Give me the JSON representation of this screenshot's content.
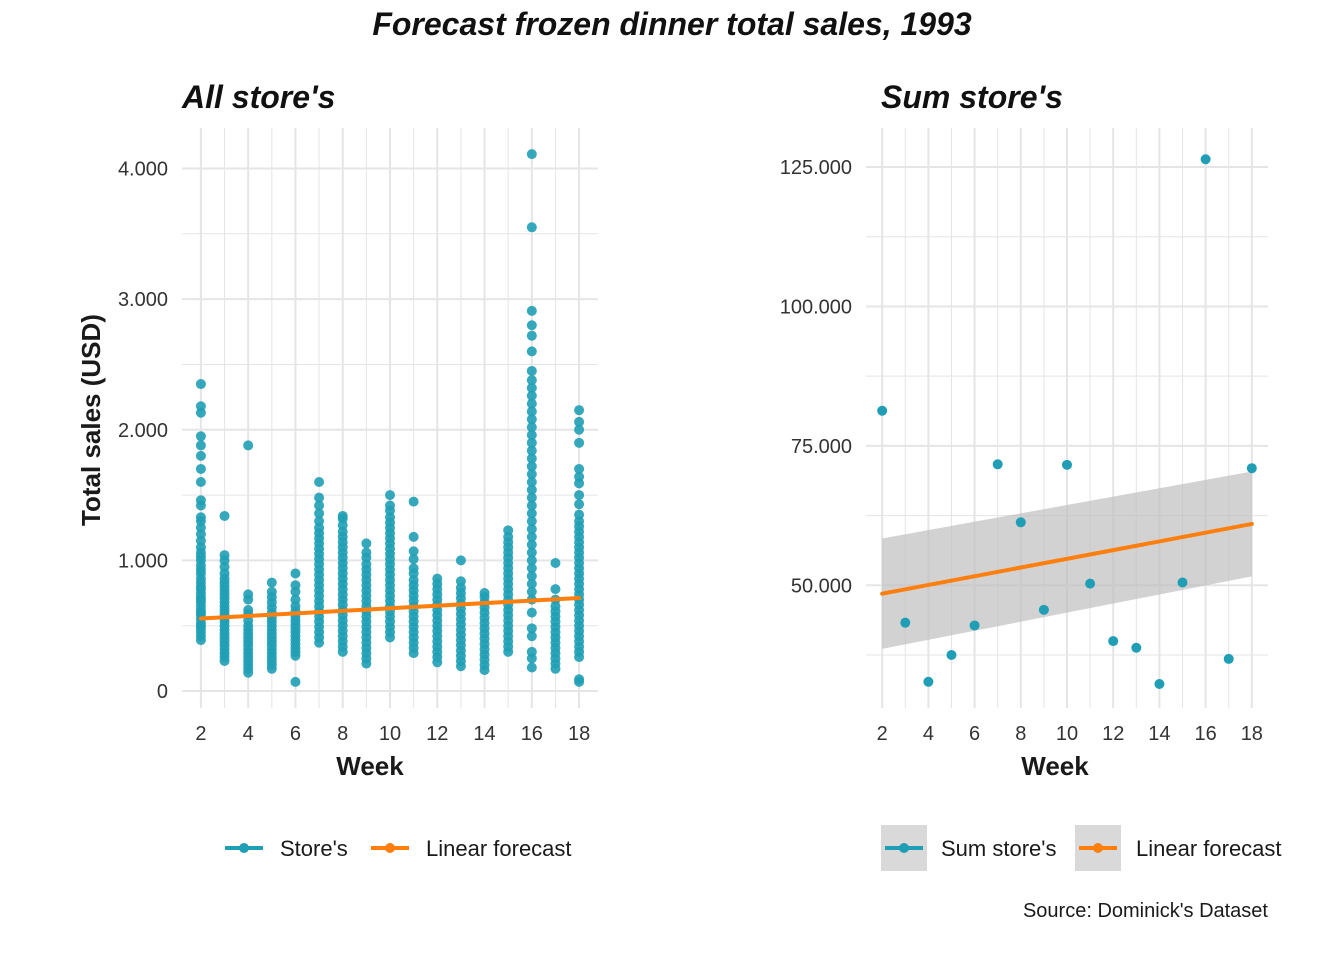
{
  "title": "Forecast frozen dinner total sales, 1993",
  "caption": "Source: Dominick's Dataset",
  "colors": {
    "points": "#1f9eb5",
    "forecast": "#ff7f0e",
    "ribbon": "#bfbfbf",
    "grid": "#e5e5e5",
    "legend_key_bg": "#d9d9d9"
  },
  "chart_data": [
    {
      "type": "scatter",
      "title": "All store's",
      "xlabel": "Week",
      "ylabel": "Total sales (USD)",
      "xlim": [
        1.2,
        18.8
      ],
      "ylim": [
        -130,
        4310
      ],
      "x_ticks": [
        2,
        4,
        6,
        8,
        10,
        12,
        14,
        16,
        18
      ],
      "y_ticks": [
        0,
        1000,
        2000,
        3000,
        4000
      ],
      "y_tick_labels": [
        "0",
        "1.000",
        "2.000",
        "3.000",
        "4.000"
      ],
      "grid": true,
      "legend_position": "bottom",
      "series": [
        {
          "name": "Store's",
          "kind": "points",
          "points_by_week": [
            {
              "x": 2,
              "y": [
                390,
                420,
                450,
                480,
                500,
                520,
                550,
                580,
                600,
                620,
                650,
                680,
                700,
                720,
                750,
                780,
                800,
                830,
                860,
                900,
                930,
                960,
                1000,
                1030,
                1060,
                1100,
                1150,
                1200,
                1250,
                1300,
                1330,
                1420,
                1460,
                1600,
                1700,
                1800,
                1880,
                1950,
                2130,
                2180,
                2350
              ]
            },
            {
              "x": 3,
              "y": [
                230,
                260,
                290,
                320,
                350,
                380,
                410,
                440,
                470,
                500,
                530,
                560,
                590,
                620,
                650,
                680,
                710,
                740,
                770,
                800,
                830,
                860,
                900,
                950,
                1000,
                1040,
                1340
              ]
            },
            {
              "x": 4,
              "y": [
                140,
                170,
                200,
                230,
                260,
                290,
                320,
                350,
                380,
                410,
                440,
                470,
                500,
                540,
                590,
                620,
                700,
                740,
                1880
              ]
            },
            {
              "x": 5,
              "y": [
                170,
                200,
                230,
                260,
                290,
                320,
                350,
                380,
                410,
                440,
                470,
                500,
                530,
                560,
                600,
                640,
                680,
                720,
                760,
                830
              ]
            },
            {
              "x": 6,
              "y": [
                70,
                270,
                300,
                330,
                360,
                390,
                420,
                450,
                480,
                510,
                540,
                570,
                610,
                650,
                700,
                760,
                810,
                900
              ]
            },
            {
              "x": 7,
              "y": [
                370,
                410,
                450,
                490,
                530,
                570,
                610,
                650,
                690,
                730,
                770,
                810,
                850,
                890,
                930,
                970,
                1010,
                1050,
                1090,
                1130,
                1170,
                1210,
                1250,
                1300,
                1360,
                1420,
                1480,
                1600
              ]
            },
            {
              "x": 8,
              "y": [
                300,
                340,
                380,
                420,
                460,
                500,
                540,
                580,
                620,
                660,
                700,
                740,
                780,
                820,
                860,
                900,
                940,
                980,
                1020,
                1060,
                1100,
                1140,
                1180,
                1220,
                1270,
                1320,
                1340
              ]
            },
            {
              "x": 9,
              "y": [
                210,
                250,
                290,
                330,
                370,
                410,
                450,
                490,
                530,
                570,
                610,
                650,
                690,
                730,
                770,
                810,
                850,
                890,
                930,
                970,
                1020,
                1060,
                1130
              ]
            },
            {
              "x": 10,
              "y": [
                410,
                450,
                490,
                530,
                570,
                610,
                650,
                690,
                730,
                770,
                810,
                850,
                890,
                930,
                970,
                1010,
                1050,
                1090,
                1130,
                1170,
                1210,
                1250,
                1290,
                1330,
                1380,
                1420,
                1500
              ]
            },
            {
              "x": 11,
              "y": [
                290,
                330,
                370,
                410,
                450,
                490,
                530,
                570,
                610,
                650,
                690,
                730,
                770,
                810,
                850,
                900,
                940,
                1010,
                1070,
                1180,
                1450
              ]
            },
            {
              "x": 12,
              "y": [
                220,
                260,
                300,
                340,
                380,
                420,
                460,
                500,
                540,
                580,
                620,
                660,
                700,
                740,
                780,
                820,
                860
              ]
            },
            {
              "x": 13,
              "y": [
                190,
                230,
                270,
                310,
                350,
                390,
                430,
                470,
                510,
                550,
                590,
                630,
                670,
                710,
                750,
                790,
                840,
                1000
              ]
            },
            {
              "x": 14,
              "y": [
                160,
                200,
                240,
                280,
                320,
                360,
                400,
                440,
                480,
                520,
                560,
                600,
                640,
                680,
                720,
                750
              ]
            },
            {
              "x": 15,
              "y": [
                300,
                340,
                380,
                420,
                460,
                500,
                540,
                580,
                620,
                660,
                700,
                740,
                780,
                820,
                860,
                900,
                940,
                980,
                1020,
                1060,
                1100,
                1140,
                1180,
                1230
              ]
            },
            {
              "x": 16,
              "y": [
                180,
                250,
                300,
                420,
                480,
                600,
                700,
                760,
                820,
                880,
                940,
                1000,
                1060,
                1120,
                1180,
                1240,
                1300,
                1360,
                1420,
                1480,
                1540,
                1600,
                1660,
                1720,
                1780,
                1840,
                1900,
                1960,
                2020,
                2080,
                2140,
                2200,
                2260,
                2320,
                2380,
                2450,
                2600,
                2720,
                2800,
                2910,
                3550,
                4110
              ]
            },
            {
              "x": 17,
              "y": [
                170,
                210,
                250,
                290,
                330,
                370,
                410,
                450,
                490,
                530,
                570,
                610,
                650,
                700,
                780,
                980
              ]
            },
            {
              "x": 18,
              "y": [
                70,
                90,
                260,
                300,
                340,
                380,
                420,
                460,
                500,
                540,
                580,
                620,
                660,
                700,
                740,
                780,
                820,
                860,
                900,
                940,
                980,
                1020,
                1060,
                1100,
                1140,
                1180,
                1220,
                1260,
                1300,
                1350,
                1430,
                1500,
                1590,
                1640,
                1700,
                1900,
                2000,
                2060,
                2150
              ]
            }
          ]
        },
        {
          "name": "Linear forecast",
          "kind": "line",
          "x": [
            2,
            18
          ],
          "y": [
            555,
            712
          ]
        }
      ]
    },
    {
      "type": "scatter",
      "title": "Sum store's",
      "xlabel": "Week",
      "ylabel": "",
      "xlim": [
        1.3,
        18.7
      ],
      "ylim": [
        28000,
        132000
      ],
      "x_ticks": [
        2,
        4,
        6,
        8,
        10,
        12,
        14,
        16,
        18
      ],
      "y_ticks": [
        50000,
        75000,
        100000,
        125000
      ],
      "y_tick_labels": [
        "50.000",
        "75.000",
        "100.000",
        "125.000"
      ],
      "grid": true,
      "legend_position": "bottom",
      "series": [
        {
          "name": "Sum store's",
          "kind": "points",
          "x": [
            2,
            3,
            4,
            5,
            6,
            7,
            8,
            9,
            10,
            11,
            12,
            13,
            14,
            15,
            16,
            17,
            18
          ],
          "y": [
            81300,
            43300,
            32700,
            37500,
            42800,
            71700,
            61300,
            45600,
            71600,
            50300,
            40000,
            38800,
            32300,
            50500,
            126400,
            36800,
            71000
          ]
        },
        {
          "name": "Linear forecast",
          "kind": "line",
          "x": [
            2,
            18
          ],
          "y": [
            48500,
            61000
          ],
          "ci_lower": [
            38600,
            51600
          ],
          "ci_upper": [
            58400,
            70400
          ]
        }
      ]
    }
  ]
}
